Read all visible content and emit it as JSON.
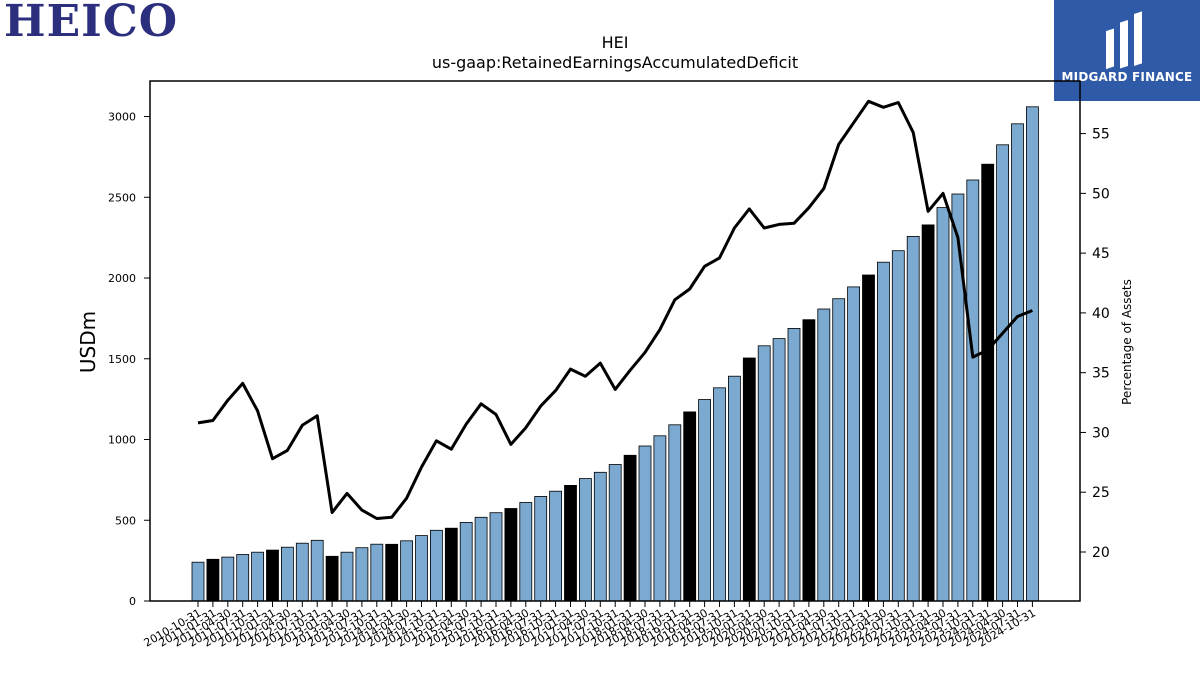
{
  "brand": {
    "logo_text": "HEICO",
    "badge_text": "MIDGARD FINANCE",
    "badge_color": "#2f5aa8",
    "logo_color": "#2b2f7e"
  },
  "chart_data": {
    "type": "bar",
    "title": "HEI",
    "subtitle": "us-gaap:RetainedEarningsAccumulatedDeficit",
    "ylabel": "USDm",
    "y2label": "Percentage of Assets",
    "ylim": [
      0,
      3220
    ],
    "y2lim": [
      15.9,
      59.4
    ],
    "yticks": [
      0,
      500,
      1000,
      1500,
      2000,
      2500,
      3000
    ],
    "y2ticks": [
      20,
      25,
      30,
      35,
      40,
      45,
      50,
      55
    ],
    "colors": {
      "bar": "#7ba9d0",
      "bar_annual": "#000000",
      "line": "#000000"
    },
    "categories": [
      "2010-10-31",
      "2011-01-31",
      "2011-04-30",
      "2011-07-31",
      "2011-10-31",
      "2012-01-31",
      "2012-04-30",
      "2012-07-31",
      "2012-10-31",
      "2013-01-31",
      "2013-04-30",
      "2013-07-31",
      "2013-10-31",
      "2014-01-31",
      "2014-04-30",
      "2014-07-31",
      "2014-10-31",
      "2015-01-31",
      "2015-04-30",
      "2015-07-31",
      "2015-10-31",
      "2016-01-31",
      "2016-04-30",
      "2016-07-31",
      "2016-10-31",
      "2017-01-31",
      "2017-04-30",
      "2017-07-31",
      "2017-10-31",
      "2018-01-31",
      "2018-04-30",
      "2018-07-31",
      "2018-10-31",
      "2019-01-31",
      "2019-04-30",
      "2019-07-31",
      "2019-10-31",
      "2020-01-31",
      "2020-04-30",
      "2020-07-31",
      "2020-10-31",
      "2021-01-31",
      "2021-04-30",
      "2021-07-31",
      "2021-10-31",
      "2022-01-31",
      "2022-04-30",
      "2022-07-31",
      "2022-10-31",
      "2023-01-31",
      "2023-04-30",
      "2023-07-31",
      "2023-10-31",
      "2024-01-31",
      "2024-04-30",
      "2024-07-31",
      "2024-10-31"
    ],
    "series": [
      {
        "values": [
          240,
          258,
          272,
          288,
          302,
          315,
          333,
          358,
          376,
          277,
          302,
          330,
          352,
          351,
          373,
          405,
          438,
          451,
          487,
          518,
          547,
          573,
          610,
          648,
          680,
          716,
          758,
          797,
          845,
          902,
          960,
          1023,
          1091,
          1171,
          1248,
          1320,
          1392,
          1505,
          1580,
          1625,
          1688,
          1742,
          1808,
          1872,
          1945,
          2019,
          2098,
          2169,
          2258,
          2329,
          2436,
          2520,
          2607,
          2705,
          2825,
          2955,
          3060
        ]
      },
      {
        "values": [
          30.8,
          31.0,
          32.7,
          34.1,
          31.8,
          27.8,
          28.5,
          30.6,
          31.4,
          23.3,
          24.9,
          23.5,
          22.8,
          22.9,
          24.5,
          27.1,
          29.3,
          28.6,
          30.7,
          32.4,
          31.5,
          29.0,
          30.4,
          32.2,
          33.5,
          35.3,
          34.7,
          35.8,
          33.6,
          35.2,
          36.7,
          38.6,
          41.1,
          42.0,
          43.9,
          44.6,
          47.1,
          48.7,
          47.1,
          47.4,
          47.5,
          48.8,
          50.4,
          54.1,
          55.9,
          57.7,
          57.2,
          57.6,
          55.1,
          48.5,
          50.0,
          46.3,
          36.3,
          36.9,
          38.3,
          39.7,
          40.2
        ]
      }
    ],
    "annual_flags": [
      0,
      1,
      0,
      0,
      0,
      1,
      0,
      0,
      0,
      1,
      0,
      0,
      0,
      1,
      0,
      0,
      0,
      1,
      0,
      0,
      0,
      1,
      0,
      0,
      0,
      1,
      0,
      0,
      0,
      1,
      0,
      0,
      0,
      1,
      0,
      0,
      0,
      1,
      0,
      0,
      0,
      1,
      0,
      0,
      0,
      1,
      0,
      0,
      0,
      1,
      0,
      0,
      0,
      1,
      0,
      0,
      0
    ]
  }
}
